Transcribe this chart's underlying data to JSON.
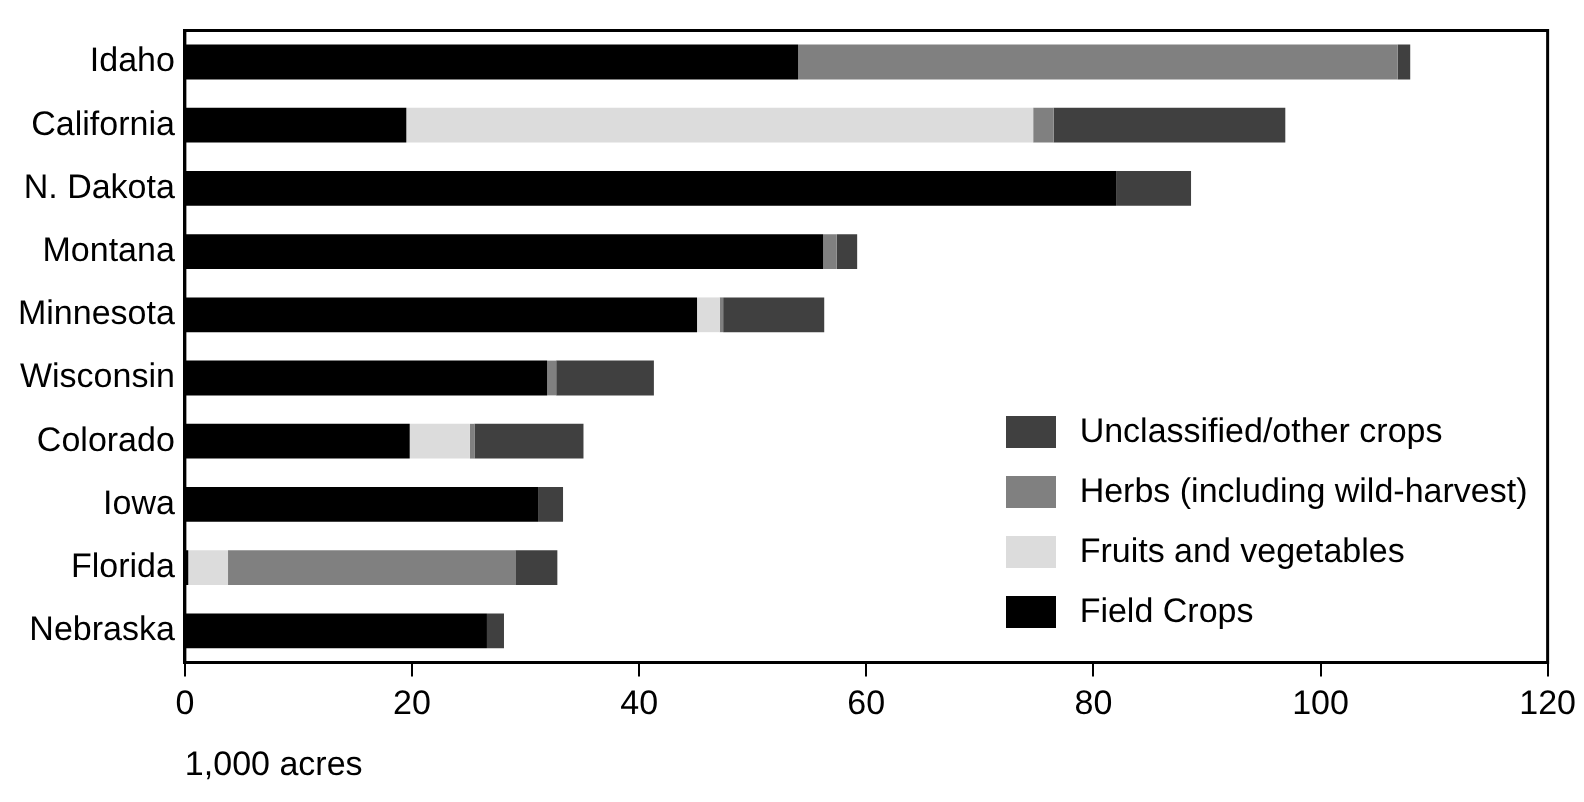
{
  "chart_data": {
    "type": "bar",
    "orientation": "horizontal",
    "stacked": true,
    "categories": [
      "Idaho",
      "California",
      "N. Dakota",
      "Montana",
      "Minnesota",
      "Wisconsin",
      "Colorado",
      "Iowa",
      "Florida",
      "Nebraska"
    ],
    "series": [
      {
        "name": "Field Crops",
        "color": "#000000",
        "values": [
          54.0,
          19.5,
          82.0,
          56.2,
          45.1,
          31.9,
          19.8,
          31.1,
          0.3,
          26.6
        ]
      },
      {
        "name": "Fruits and vegetables",
        "color": "#dcdcdc",
        "values": [
          null,
          55.2,
          null,
          null,
          2.0,
          null,
          5.3,
          null,
          3.5,
          null
        ]
      },
      {
        "name": "Herbs (including wild-harvest)",
        "color": "#808080",
        "values": [
          52.8,
          1.8,
          null,
          1.2,
          0.3,
          0.8,
          0.4,
          null,
          25.3,
          null
        ]
      },
      {
        "name": "Unclassified/other crops",
        "color": "#404040",
        "values": [
          1.1,
          20.4,
          6.6,
          1.8,
          8.9,
          8.6,
          9.6,
          2.2,
          3.7,
          1.5
        ]
      }
    ],
    "xlabel": "1,000 acres",
    "xlim": [
      0,
      120
    ],
    "xticks": [
      0,
      20,
      40,
      60,
      80,
      100,
      120
    ],
    "grid": false,
    "legend": "bottom right"
  }
}
